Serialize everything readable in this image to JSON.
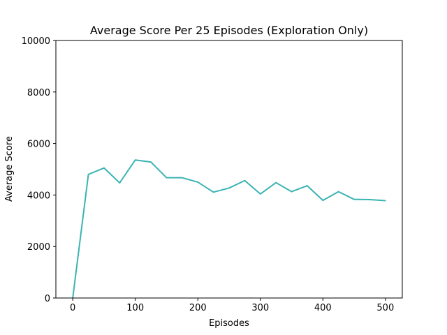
{
  "chart_data": {
    "type": "line",
    "title": "Average Score Per 25 Episodes (Exploration Only)",
    "xlabel": "Episodes",
    "ylabel": "Average Score",
    "xlim": [
      -27,
      527
    ],
    "ylim": [
      0,
      10000
    ],
    "x_ticks": [
      0,
      100,
      200,
      300,
      400,
      500
    ],
    "y_ticks": [
      0,
      2000,
      4000,
      6000,
      8000,
      10000
    ],
    "grid": false,
    "legend": "none",
    "line_color": "#3bb3b3",
    "series": [
      {
        "x": [
          0,
          25,
          50,
          75,
          100,
          125,
          150,
          175,
          200,
          225,
          250,
          275,
          300,
          325,
          350,
          375,
          400,
          425,
          450,
          475,
          500
        ],
        "values": [
          0,
          4800,
          5050,
          4470,
          5360,
          5280,
          4670,
          4670,
          4500,
          4110,
          4270,
          4560,
          4040,
          4480,
          4130,
          4360,
          3790,
          4130,
          3830,
          3820,
          3780
        ]
      }
    ]
  }
}
